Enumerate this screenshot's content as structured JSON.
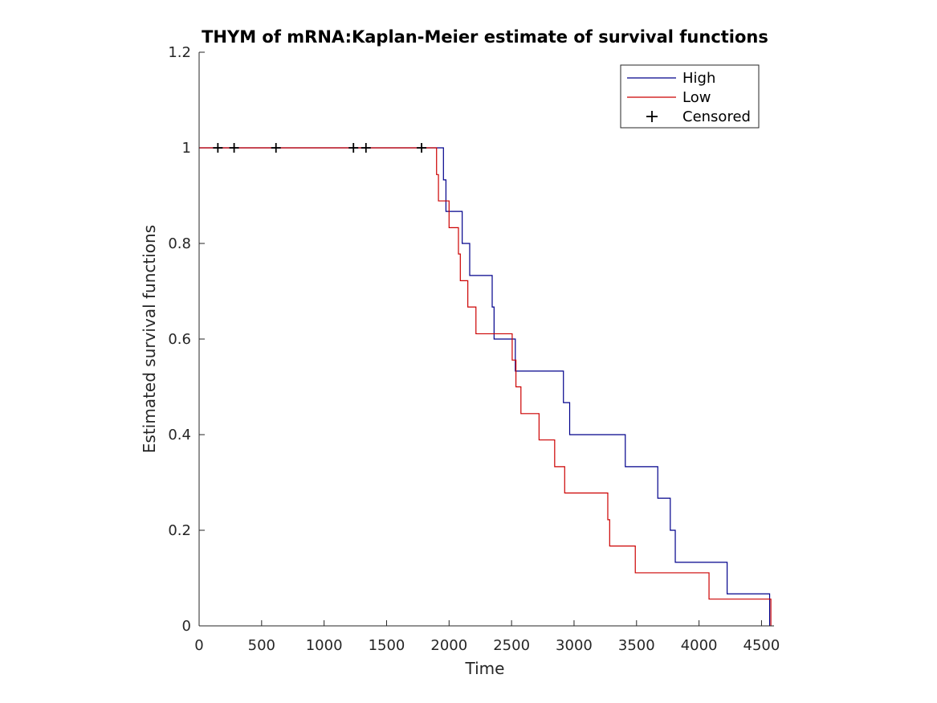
{
  "chart_data": {
    "type": "line",
    "title": "THYM of mRNA:Kaplan-Meier estimate of survival functions",
    "xlabel": "Time",
    "ylabel": "Estimated survival functions",
    "xlim": [
      0,
      4600
    ],
    "ylim": [
      0,
      1.2
    ],
    "x_ticks": [
      0,
      500,
      1000,
      1500,
      2000,
      2500,
      3000,
      3500,
      4000,
      4500
    ],
    "y_ticks": [
      0,
      0.2,
      0.4,
      0.6,
      0.8,
      1,
      1.2
    ],
    "x_tick_labels": [
      "0",
      "500",
      "1000",
      "1500",
      "2000",
      "2500",
      "3000",
      "3500",
      "4000",
      "4500"
    ],
    "y_tick_labels": [
      "0",
      "0.2",
      "0.4",
      "0.6",
      "0.8",
      "1",
      "1.2"
    ],
    "grid": false,
    "legend_position": "top-right",
    "legend": [
      {
        "label": "High",
        "kind": "line",
        "color": "#00008b"
      },
      {
        "label": "Low",
        "kind": "line",
        "color": "#cc0000"
      },
      {
        "label": "Censored",
        "kind": "marker",
        "color": "#000000"
      }
    ],
    "series": [
      {
        "name": "High",
        "color": "#00008b",
        "steps": [
          [
            0,
            1.0
          ],
          [
            1955,
            1.0
          ],
          [
            1955,
            0.933
          ],
          [
            1975,
            0.933
          ],
          [
            1975,
            0.867
          ],
          [
            2105,
            0.867
          ],
          [
            2105,
            0.8
          ],
          [
            2165,
            0.8
          ],
          [
            2165,
            0.733
          ],
          [
            2345,
            0.733
          ],
          [
            2345,
            0.667
          ],
          [
            2360,
            0.667
          ],
          [
            2360,
            0.6
          ],
          [
            2530,
            0.6
          ],
          [
            2530,
            0.533
          ],
          [
            2915,
            0.533
          ],
          [
            2915,
            0.467
          ],
          [
            2965,
            0.467
          ],
          [
            2965,
            0.4
          ],
          [
            3410,
            0.4
          ],
          [
            3410,
            0.333
          ],
          [
            3670,
            0.333
          ],
          [
            3670,
            0.267
          ],
          [
            3770,
            0.267
          ],
          [
            3770,
            0.2
          ],
          [
            3810,
            0.2
          ],
          [
            3810,
            0.133
          ],
          [
            4225,
            0.133
          ],
          [
            4225,
            0.067
          ],
          [
            4565,
            0.067
          ],
          [
            4565,
            0.0
          ]
        ]
      },
      {
        "name": "Low",
        "color": "#cc0000",
        "steps": [
          [
            0,
            1.0
          ],
          [
            1900,
            1.0
          ],
          [
            1900,
            0.944
          ],
          [
            1915,
            0.944
          ],
          [
            1915,
            0.889
          ],
          [
            2000,
            0.889
          ],
          [
            2000,
            0.833
          ],
          [
            2075,
            0.833
          ],
          [
            2075,
            0.778
          ],
          [
            2090,
            0.778
          ],
          [
            2090,
            0.722
          ],
          [
            2150,
            0.722
          ],
          [
            2150,
            0.667
          ],
          [
            2215,
            0.667
          ],
          [
            2215,
            0.611
          ],
          [
            2505,
            0.611
          ],
          [
            2505,
            0.556
          ],
          [
            2535,
            0.556
          ],
          [
            2535,
            0.5
          ],
          [
            2575,
            0.5
          ],
          [
            2575,
            0.444
          ],
          [
            2720,
            0.444
          ],
          [
            2720,
            0.389
          ],
          [
            2845,
            0.389
          ],
          [
            2845,
            0.333
          ],
          [
            2925,
            0.333
          ],
          [
            2925,
            0.278
          ],
          [
            3270,
            0.278
          ],
          [
            3270,
            0.222
          ],
          [
            3285,
            0.222
          ],
          [
            3285,
            0.167
          ],
          [
            3490,
            0.167
          ],
          [
            3490,
            0.111
          ],
          [
            4080,
            0.111
          ],
          [
            4080,
            0.056
          ],
          [
            4575,
            0.056
          ],
          [
            4575,
            0.0
          ]
        ]
      }
    ],
    "censored": {
      "name": "Censored",
      "color": "#000000",
      "points": [
        [
          150,
          1.0
        ],
        [
          280,
          1.0
        ],
        [
          615,
          1.0
        ],
        [
          1235,
          1.0
        ],
        [
          1335,
          1.0
        ],
        [
          1780,
          1.0
        ]
      ]
    }
  }
}
